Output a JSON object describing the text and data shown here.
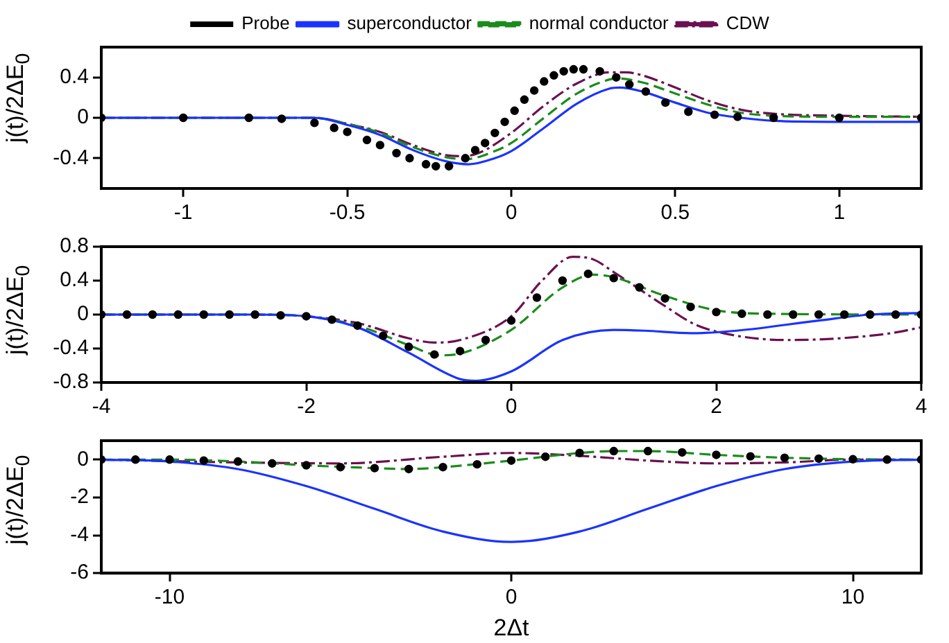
{
  "chart_data": [
    {
      "type": "line",
      "ylabel": "j(t)/2ΔE$_{0}$",
      "xlim": [
        -1.25,
        1.25
      ],
      "xticks": [
        -1,
        -0.5,
        0,
        0.5,
        1
      ],
      "ylim": [
        -0.7,
        0.7
      ],
      "yticks": [
        -0.4,
        0,
        0.4
      ],
      "grid": false,
      "legend": "top",
      "series": [
        {
          "name": "Probe",
          "type": "scatter",
          "marker": "circle",
          "color": "#000000",
          "x": [
            -1.25,
            -1.0,
            -0.8,
            -0.7,
            -0.6,
            -0.54,
            -0.5,
            -0.44,
            -0.4,
            -0.35,
            -0.31,
            -0.26,
            -0.23,
            -0.19,
            -0.14,
            -0.11,
            -0.08,
            -0.05,
            -0.02,
            0.01,
            0.04,
            0.07,
            0.1,
            0.13,
            0.16,
            0.19,
            0.22,
            0.27,
            0.32,
            0.36,
            0.41,
            0.47,
            0.54,
            0.62,
            0.69,
            0.8,
            1.0,
            1.25
          ],
          "values": [
            0,
            0,
            0,
            -0.01,
            -0.05,
            -0.1,
            -0.14,
            -0.22,
            -0.27,
            -0.35,
            -0.4,
            -0.46,
            -0.48,
            -0.48,
            -0.4,
            -0.32,
            -0.25,
            -0.15,
            -0.04,
            0.07,
            0.18,
            0.27,
            0.36,
            0.42,
            0.46,
            0.48,
            0.48,
            0.46,
            0.4,
            0.33,
            0.26,
            0.15,
            0.06,
            0.03,
            0.01,
            0,
            0,
            0
          ]
        },
        {
          "name": "superconductor",
          "marker": "none",
          "line_style": "solid",
          "color": "#1a33ff",
          "x": [
            -1.25,
            -0.6,
            -0.5,
            -0.4,
            -0.3,
            -0.2,
            -0.13,
            -0.05,
            0,
            0.1,
            0.2,
            0.3,
            0.33,
            0.4,
            0.5,
            0.6,
            0.7,
            0.8,
            1.0,
            1.25
          ],
          "values": [
            0,
            0,
            -0.07,
            -0.17,
            -0.32,
            -0.43,
            -0.46,
            -0.4,
            -0.33,
            -0.1,
            0.14,
            0.29,
            0.3,
            0.26,
            0.15,
            0.05,
            0,
            -0.03,
            -0.04,
            -0.04
          ]
        },
        {
          "name": "normal conductor",
          "marker": "none",
          "line_style": "dashed",
          "color": "#1a8c1a",
          "x": [
            -1.25,
            -0.6,
            -0.5,
            -0.4,
            -0.3,
            -0.2,
            -0.14,
            -0.05,
            0,
            0.1,
            0.2,
            0.3,
            0.32,
            0.4,
            0.5,
            0.6,
            0.7,
            0.8,
            1.0,
            1.25
          ],
          "values": [
            0,
            0,
            -0.06,
            -0.15,
            -0.29,
            -0.39,
            -0.41,
            -0.33,
            -0.25,
            0,
            0.24,
            0.38,
            0.39,
            0.35,
            0.24,
            0.13,
            0.05,
            0.02,
            0.01,
            0.01
          ]
        },
        {
          "name": "CDW",
          "marker": "none",
          "line_style": "dashdot",
          "color": "#6b1050",
          "x": [
            -1.25,
            -0.6,
            -0.5,
            -0.4,
            -0.3,
            -0.2,
            -0.15,
            -0.1,
            0,
            0.1,
            0.2,
            0.3,
            0.35,
            0.4,
            0.5,
            0.6,
            0.7,
            0.8,
            1.0,
            1.25
          ],
          "values": [
            0,
            0,
            -0.06,
            -0.14,
            -0.27,
            -0.37,
            -0.38,
            -0.35,
            -0.15,
            0.12,
            0.34,
            0.45,
            0.45,
            0.42,
            0.3,
            0.17,
            0.08,
            0.04,
            0.02,
            0.01
          ]
        }
      ]
    },
    {
      "type": "line",
      "ylabel": "j(t)/2ΔE$_{0}$",
      "xlim": [
        -4,
        4
      ],
      "xticks": [
        -4,
        -2,
        0,
        2,
        4
      ],
      "ylim": [
        -0.8,
        0.8
      ],
      "yticks": [
        -0.8,
        -0.4,
        0,
        0.4,
        0.8
      ],
      "grid": false,
      "series": [
        {
          "type": "scatter",
          "marker": "circle",
          "color": "#000000",
          "x": [
            -4,
            -3.75,
            -3.5,
            -3.25,
            -3,
            -2.75,
            -2.5,
            -2.25,
            -2,
            -1.75,
            -1.5,
            -1.25,
            -1,
            -0.75,
            -0.5,
            -0.25,
            0,
            0.25,
            0.5,
            0.75,
            1,
            1.25,
            1.5,
            1.75,
            2,
            2.25,
            2.5,
            2.75,
            3,
            3.25,
            3.5,
            3.75,
            4
          ],
          "values": [
            0,
            0,
            0,
            0,
            0,
            0,
            0,
            -0.01,
            -0.02,
            -0.06,
            -0.13,
            -0.25,
            -0.38,
            -0.47,
            -0.43,
            -0.3,
            -0.07,
            0.2,
            0.4,
            0.48,
            0.43,
            0.32,
            0.19,
            0.09,
            0.03,
            0.01,
            0,
            0,
            0,
            0,
            0,
            0,
            0
          ]
        },
        {
          "marker": "none",
          "line_style": "solid",
          "color": "#1a33ff",
          "x": [
            -4,
            -2.5,
            -2,
            -1.5,
            -1,
            -0.5,
            -0.35,
            0,
            0.5,
            1,
            1.3,
            1.75,
            2.2,
            3,
            3.5,
            4
          ],
          "values": [
            0,
            0,
            -0.02,
            -0.15,
            -0.45,
            -0.76,
            -0.78,
            -0.67,
            -0.3,
            -0.18,
            -0.19,
            -0.22,
            -0.19,
            -0.07,
            0,
            0.02
          ]
        },
        {
          "marker": "none",
          "line_style": "dashed",
          "color": "#1a8c1a",
          "x": [
            -4,
            -2.5,
            -2,
            -1.5,
            -1,
            -0.7,
            -0.5,
            0,
            0.5,
            0.8,
            1,
            1.5,
            2,
            2.5,
            4
          ],
          "values": [
            0,
            0,
            -0.02,
            -0.13,
            -0.36,
            -0.48,
            -0.46,
            -0.18,
            0.32,
            0.47,
            0.44,
            0.22,
            0.05,
            0.01,
            0
          ]
        },
        {
          "marker": "none",
          "line_style": "dashdot",
          "color": "#6b1050",
          "x": [
            -4,
            -2.5,
            -2,
            -1.5,
            -1,
            -0.75,
            -0.5,
            0,
            0.3,
            0.6,
            0.8,
            1,
            1.5,
            1.8,
            2.2,
            2.7,
            3.2,
            3.7,
            4
          ],
          "values": [
            0,
            0,
            -0.02,
            -0.1,
            -0.28,
            -0.33,
            -0.3,
            -0.02,
            0.4,
            0.68,
            0.65,
            0.5,
            0.1,
            -0.12,
            -0.25,
            -0.3,
            -0.28,
            -0.22,
            -0.15
          ]
        }
      ]
    },
    {
      "type": "line",
      "ylabel": "j(t)/2ΔE$_{0}$",
      "xlabel": "2Δt",
      "xlim": [
        -12,
        12
      ],
      "xticks": [
        -10,
        0,
        10
      ],
      "ylim": [
        -6,
        1
      ],
      "yticks": [
        -6,
        -4,
        -2,
        0
      ],
      "grid": false,
      "series": [
        {
          "type": "scatter",
          "marker": "circle",
          "color": "#000000",
          "x": [
            -12,
            -11,
            -10,
            -9,
            -8,
            -7,
            -6,
            -5,
            -4,
            -3,
            -2,
            -1,
            0,
            1,
            2,
            3,
            4,
            5,
            6,
            7,
            8,
            9,
            10,
            11,
            12
          ],
          "values": [
            0,
            0,
            0,
            -0.05,
            -0.1,
            -0.2,
            -0.3,
            -0.4,
            -0.45,
            -0.5,
            -0.4,
            -0.25,
            -0.05,
            0.15,
            0.35,
            0.45,
            0.45,
            0.38,
            0.25,
            0.17,
            0.1,
            0.05,
            0.02,
            0,
            0
          ]
        },
        {
          "marker": "none",
          "line_style": "solid",
          "color": "#1a33ff",
          "x": [
            -12,
            -10,
            -8,
            -6,
            -4,
            -2,
            0,
            2,
            4,
            6,
            8,
            10,
            12
          ],
          "values": [
            0,
            -0.1,
            -0.5,
            -1.4,
            -2.6,
            -3.8,
            -4.35,
            -3.8,
            -2.6,
            -1.4,
            -0.5,
            -0.1,
            0
          ]
        },
        {
          "marker": "none",
          "line_style": "dashed",
          "color": "#1a8c1a",
          "x": [
            -12,
            -10,
            -8,
            -6,
            -4,
            -3,
            -2,
            0,
            2,
            3,
            4,
            6,
            8,
            10,
            12
          ],
          "values": [
            0,
            0,
            -0.1,
            -0.3,
            -0.45,
            -0.5,
            -0.4,
            -0.05,
            0.35,
            0.45,
            0.45,
            0.25,
            0.1,
            0.02,
            0
          ]
        },
        {
          "marker": "none",
          "line_style": "dashdot",
          "color": "#6b1050",
          "x": [
            -12,
            -8,
            -5,
            -2,
            0,
            2,
            4,
            6,
            8,
            10,
            12
          ],
          "values": [
            0,
            -0.15,
            -0.2,
            0.15,
            0.35,
            0.2,
            -0.05,
            -0.2,
            -0.15,
            0,
            0
          ]
        }
      ]
    }
  ]
}
